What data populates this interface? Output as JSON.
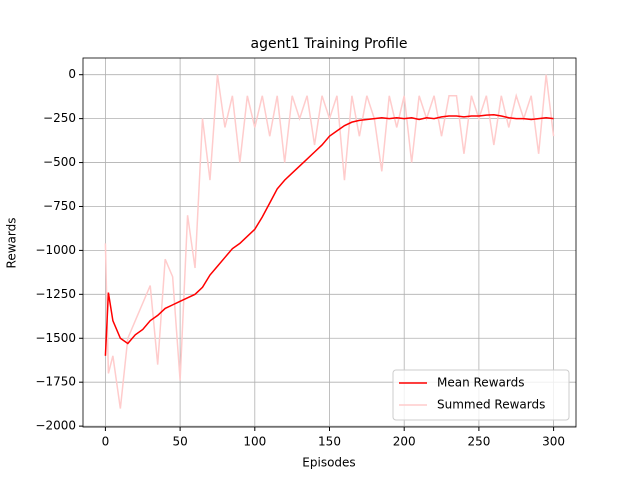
{
  "chart_data": {
    "type": "line",
    "title": "agent1 Training Profile",
    "x_label": "Episodes",
    "y_label": "Rewards",
    "x": [
      0,
      2,
      5,
      10,
      15,
      20,
      25,
      30,
      35,
      40,
      45,
      50,
      55,
      60,
      65,
      70,
      75,
      80,
      85,
      90,
      95,
      100,
      105,
      110,
      115,
      120,
      125,
      130,
      135,
      140,
      145,
      150,
      155,
      160,
      165,
      170,
      175,
      180,
      185,
      190,
      195,
      200,
      205,
      210,
      215,
      220,
      225,
      230,
      235,
      240,
      245,
      250,
      255,
      260,
      265,
      270,
      275,
      280,
      285,
      290,
      295,
      300
    ],
    "series": [
      {
        "name": "Mean Rewards",
        "color": "#ff0000",
        "values": [
          -1600,
          -1240,
          -1400,
          -1500,
          -1530,
          -1480,
          -1450,
          -1400,
          -1370,
          -1330,
          -1310,
          -1290,
          -1270,
          -1250,
          -1210,
          -1140,
          -1090,
          -1040,
          -990,
          -960,
          -920,
          -880,
          -810,
          -730,
          -650,
          -600,
          -560,
          -520,
          -480,
          -440,
          -400,
          -350,
          -320,
          -290,
          -270,
          -260,
          -255,
          -250,
          -245,
          -250,
          -245,
          -250,
          -245,
          -255,
          -245,
          -250,
          -240,
          -235,
          -235,
          -240,
          -235,
          -235,
          -230,
          -228,
          -235,
          -245,
          -250,
          -250,
          -255,
          -250,
          -245,
          -250
        ]
      },
      {
        "name": "Summed Rewards",
        "color": "#ffcccc",
        "values": [
          -960,
          -1700,
          -1600,
          -1900,
          -1500,
          -1400,
          -1300,
          -1200,
          -1650,
          -1050,
          -1150,
          -1740,
          -800,
          -1100,
          -250,
          -600,
          0,
          -300,
          -120,
          -500,
          -120,
          -300,
          -120,
          -350,
          -120,
          -500,
          -120,
          -250,
          -120,
          -400,
          -120,
          -250,
          -120,
          -600,
          -120,
          -350,
          -120,
          -250,
          -550,
          -120,
          -300,
          -120,
          -500,
          -120,
          -250,
          -120,
          -350,
          -120,
          -120,
          -450,
          -120,
          -250,
          -120,
          -400,
          -120,
          -300,
          -120,
          -250,
          -120,
          -450,
          0,
          -350
        ]
      }
    ],
    "xlim": [
      -15,
      315
    ],
    "xticks": [
      0,
      50,
      100,
      150,
      200,
      250,
      300
    ],
    "ylim": [
      -2005,
      95
    ],
    "yticks": [
      {
        "value": 0,
        "label": "0"
      },
      {
        "value": -250,
        "label": "−250"
      },
      {
        "value": -500,
        "label": "−500"
      },
      {
        "value": -750,
        "label": "−750"
      },
      {
        "value": -1000,
        "label": "−1000"
      },
      {
        "value": -1250,
        "label": "−1250"
      },
      {
        "value": -1500,
        "label": "−1500"
      },
      {
        "value": -1750,
        "label": "−1750"
      },
      {
        "value": -2000,
        "label": "−2000"
      }
    ],
    "grid": true,
    "legend": "lower right"
  }
}
